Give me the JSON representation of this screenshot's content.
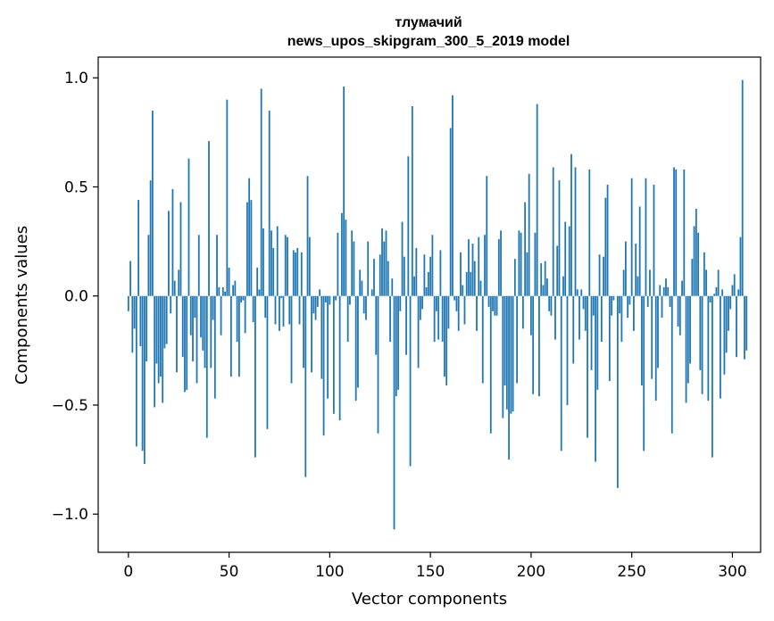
{
  "chart_data": {
    "type": "bar",
    "title_line1": "тлумачий",
    "title_line2": "news_upos_skipgram_300_5_2019 model",
    "xlabel": "Vector components",
    "ylabel": "Components values",
    "xlim": [
      -15,
      314
    ],
    "ylim": [
      -1.175,
      1.095
    ],
    "xticks": [
      0,
      50,
      100,
      150,
      200,
      250,
      300
    ],
    "xtick_labels": [
      "0",
      "50",
      "100",
      "150",
      "200",
      "250",
      "300"
    ],
    "yticks": [
      1.0,
      0.5,
      0.0,
      -0.5,
      -1.0
    ],
    "ytick_labels": [
      "1.0",
      "0.5",
      "0.0",
      "−0.5",
      "−1.0"
    ],
    "bar_color": "#1f77b4",
    "grid": false,
    "values": [
      -0.07,
      0.16,
      -0.26,
      -0.15,
      -0.69,
      0.44,
      -0.23,
      -0.71,
      -0.77,
      -0.3,
      0.28,
      0.53,
      0.85,
      -0.51,
      -0.31,
      -0.4,
      -0.37,
      -0.49,
      -0.24,
      -0.22,
      0.39,
      -0.08,
      0.49,
      0.07,
      -0.35,
      0.12,
      0.43,
      -0.28,
      -0.44,
      -0.43,
      0.63,
      -0.18,
      -0.3,
      -0.1,
      -0.4,
      0.28,
      -0.19,
      -0.25,
      -0.33,
      -0.65,
      0.71,
      -0.33,
      -0.11,
      -0.47,
      0.28,
      0.04,
      -0.18,
      0.04,
      0.02,
      0.9,
      0.13,
      -0.37,
      0.05,
      0.07,
      -0.21,
      -0.37,
      -0.03,
      -0.02,
      -0.17,
      0.43,
      0.54,
      0.44,
      -0.12,
      -0.74,
      0.13,
      0.03,
      0.95,
      0.31,
      -0.1,
      -0.61,
      0.85,
      0.3,
      0.22,
      -0.13,
      0.32,
      -0.16,
      -0.01,
      -0.14,
      0.28,
      0.27,
      -0.13,
      -0.4,
      0.21,
      0.2,
      0.22,
      -0.13,
      0.2,
      -0.33,
      -0.83,
      0.55,
      0.27,
      -0.35,
      -0.08,
      -0.11,
      -0.05,
      0.03,
      -0.38,
      -0.64,
      -0.03,
      -0.47,
      -0.04,
      0.0,
      -0.54,
      -0.02,
      0.29,
      -0.57,
      0.38,
      0.96,
      0.35,
      -0.21,
      -0.04,
      0.3,
      0.25,
      -0.48,
      -0.42,
      0.12,
      0.07,
      -0.08,
      -0.11,
      0.25,
      0.0,
      0.03,
      0.17,
      -0.27,
      -0.63,
      0.19,
      0.31,
      0.25,
      0.3,
      0.16,
      -0.21,
      0.08,
      -1.07,
      -0.46,
      -0.43,
      -0.07,
      0.34,
      0.18,
      -0.27,
      0.64,
      -0.78,
      0.87,
      0.09,
      0.22,
      -0.33,
      -0.11,
      -0.06,
      0.19,
      0.04,
      0.11,
      0.18,
      0.28,
      -0.21,
      -0.07,
      -0.2,
      0.21,
      -0.21,
      -0.37,
      -0.41,
      -0.15,
      0.77,
      0.92,
      -0.02,
      -0.07,
      -0.16,
      0.2,
      0.05,
      -0.13,
      0.11,
      0.26,
      0.11,
      0.24,
      0.16,
      -0.16,
      0.27,
      0.07,
      -0.4,
      0.28,
      0.55,
      -0.05,
      -0.63,
      -0.07,
      -0.09,
      -0.09,
      0.26,
      0.3,
      -0.56,
      -0.41,
      -0.52,
      -0.75,
      -0.54,
      -0.53,
      0.17,
      -0.4,
      0.3,
      0.29,
      -0.15,
      0.43,
      0.2,
      0.56,
      -0.18,
      -0.45,
      0.29,
      0.88,
      -0.46,
      0.15,
      0.05,
      0.16,
      0.08,
      -0.07,
      -0.09,
      0.59,
      -0.2,
      0.23,
      0.53,
      -0.71,
      0.09,
      0.34,
      -0.5,
      0.32,
      0.65,
      -0.31,
      0.59,
      0.03,
      -0.2,
      0.03,
      -0.06,
      -0.16,
      -0.65,
      0.58,
      -0.34,
      -0.09,
      -0.76,
      -0.43,
      0.19,
      -0.21,
      0.18,
      0.45,
      0.51,
      -0.39,
      -0.09,
      -0.02,
      0.0,
      -0.88,
      -0.08,
      -0.21,
      0.12,
      0.25,
      -0.1,
      -0.04,
      0.54,
      -0.16,
      0.24,
      0.09,
      0.41,
      -0.41,
      -0.71,
      0.54,
      -0.05,
      0.12,
      -0.38,
      0.51,
      -0.48,
      -0.33,
      0.05,
      -0.1,
      0.04,
      0.08,
      0.04,
      -0.05,
      -0.63,
      0.59,
      0.58,
      -0.14,
      -0.18,
      0.07,
      0.58,
      -0.49,
      -0.4,
      -0.31,
      0.17,
      0.32,
      0.4,
      0.29,
      -0.34,
      -0.45,
      0.2,
      0.12,
      -0.48,
      -0.03,
      -0.74,
      0.01,
      0.04,
      0.12,
      -0.47,
      0.03,
      -0.36,
      -0.26,
      -0.16,
      -0.06,
      0.05,
      0.1,
      -0.28,
      0.03,
      0.27,
      0.99,
      -0.29,
      -0.25
    ]
  }
}
